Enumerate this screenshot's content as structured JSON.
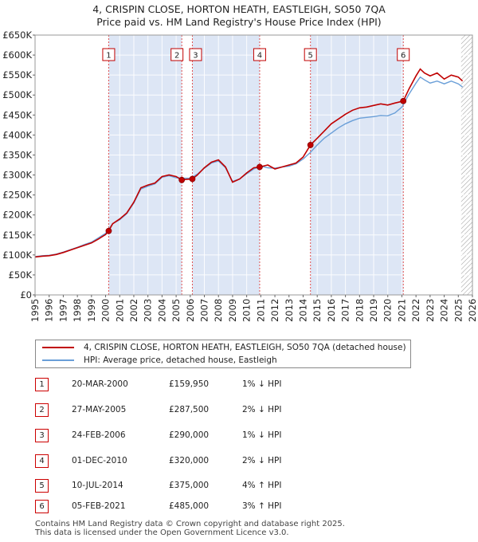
{
  "title_line1": "4, CRISPIN CLOSE, HORTON HEATH, EASTLEIGH, SO50 7QA",
  "title_line2": "Price paid vs. HM Land Registry's House Price Index (HPI)",
  "legend": {
    "property": "4, CRISPIN CLOSE, HORTON HEATH, EASTLEIGH, SO50 7QA (detached house)",
    "hpi": "HPI: Average price, detached house, Eastleigh"
  },
  "colors": {
    "property": "#c00000",
    "hpi": "#6a9fd8",
    "band": "#dde6f5",
    "marker_line": "#e05050"
  },
  "sales": [
    {
      "num": "1",
      "date": "20-MAR-2000",
      "price": "£159,950",
      "hpi": "1% ↓ HPI"
    },
    {
      "num": "2",
      "date": "27-MAY-2005",
      "price": "£287,500",
      "hpi": "2% ↓ HPI"
    },
    {
      "num": "3",
      "date": "24-FEB-2006",
      "price": "£290,000",
      "hpi": "1% ↓ HPI"
    },
    {
      "num": "4",
      "date": "01-DEC-2010",
      "price": "£320,000",
      "hpi": "2% ↓ HPI"
    },
    {
      "num": "5",
      "date": "10-JUL-2014",
      "price": "£375,000",
      "hpi": "4% ↑ HPI"
    },
    {
      "num": "6",
      "date": "05-FEB-2021",
      "price": "£485,000",
      "hpi": "3% ↑ HPI"
    }
  ],
  "footer_line1": "Contains HM Land Registry data © Crown copyright and database right 2025.",
  "footer_line2": "This data is licensed under the Open Government Licence v3.0.",
  "chart_data": {
    "type": "line",
    "xlim": [
      1995,
      2026
    ],
    "ylim": [
      0,
      650000
    ],
    "yticks": [
      0,
      50000,
      100000,
      150000,
      200000,
      250000,
      300000,
      350000,
      400000,
      450000,
      500000,
      550000,
      600000,
      650000
    ],
    "ytick_labels": [
      "£0",
      "£50K",
      "£100K",
      "£150K",
      "£200K",
      "£250K",
      "£300K",
      "£350K",
      "£400K",
      "£450K",
      "£500K",
      "£550K",
      "£600K",
      "£650K"
    ],
    "xticks": [
      1995,
      1996,
      1997,
      1998,
      1999,
      2000,
      2001,
      2002,
      2003,
      2004,
      2005,
      2006,
      2007,
      2008,
      2009,
      2010,
      2011,
      2012,
      2013,
      2014,
      2015,
      2016,
      2017,
      2018,
      2019,
      2020,
      2021,
      2022,
      2023,
      2024,
      2025,
      2026
    ],
    "shaded_ranges": [
      [
        2000.22,
        2005.4
      ],
      [
        2006.15,
        2010.92
      ],
      [
        2014.52,
        2021.1
      ]
    ],
    "hatched_from": 2025.2,
    "sale_points": [
      {
        "label": "1",
        "x": 2000.22,
        "y": 159950
      },
      {
        "label": "2",
        "x": 2005.4,
        "y": 287500
      },
      {
        "label": "3",
        "x": 2006.15,
        "y": 290000
      },
      {
        "label": "4",
        "x": 2010.92,
        "y": 320000
      },
      {
        "label": "5",
        "x": 2014.52,
        "y": 375000
      },
      {
        "label": "6",
        "x": 2021.1,
        "y": 485000
      }
    ],
    "series": [
      {
        "name": "4, CRISPIN CLOSE, HORTON HEATH, EASTLEIGH, SO50 7QA (detached house)",
        "x": [
          1995,
          1995.5,
          1996,
          1996.5,
          1997,
          1997.5,
          1998,
          1998.5,
          1999,
          1999.5,
          2000,
          2000.22,
          2000.5,
          2001,
          2001.5,
          2002,
          2002.5,
          2003,
          2003.5,
          2004,
          2004.5,
          2005,
          2005.4,
          2005.7,
          2006.15,
          2006.5,
          2007,
          2007.5,
          2008,
          2008.5,
          2009,
          2009.5,
          2010,
          2010.5,
          2010.92,
          2011.5,
          2012,
          2012.5,
          2013,
          2013.5,
          2014,
          2014.52,
          2015,
          2015.5,
          2016,
          2016.5,
          2017,
          2017.5,
          2018,
          2018.5,
          2019,
          2019.5,
          2020,
          2020.5,
          2021.1,
          2021.5,
          2022,
          2022.3,
          2022.6,
          2023,
          2023.5,
          2024,
          2024.5,
          2025,
          2025.3
        ],
        "y": [
          95000,
          97000,
          98000,
          101000,
          106000,
          112000,
          118000,
          124000,
          130000,
          140000,
          151000,
          159950,
          178000,
          190000,
          205000,
          232000,
          268000,
          275000,
          280000,
          296000,
          300000,
          296000,
          287500,
          289000,
          290000,
          300000,
          318000,
          332000,
          338000,
          320000,
          282000,
          290000,
          305000,
          318000,
          320000,
          325000,
          315000,
          320000,
          325000,
          330000,
          345000,
          375000,
          392000,
          410000,
          428000,
          440000,
          452000,
          462000,
          468000,
          470000,
          474000,
          478000,
          475000,
          480000,
          485000,
          515000,
          548000,
          565000,
          555000,
          548000,
          555000,
          540000,
          550000,
          545000,
          535000
        ]
      },
      {
        "name": "HPI: Average price, detached house, Eastleigh",
        "x": [
          1995,
          1995.5,
          1996,
          1996.5,
          1997,
          1997.5,
          1998,
          1998.5,
          1999,
          1999.5,
          2000,
          2000.5,
          2001,
          2001.5,
          2002,
          2002.5,
          2003,
          2003.5,
          2004,
          2004.5,
          2005,
          2005.5,
          2006,
          2006.5,
          2007,
          2007.5,
          2008,
          2008.5,
          2009,
          2009.5,
          2010,
          2010.5,
          2011,
          2011.5,
          2012,
          2012.5,
          2013,
          2013.5,
          2014,
          2014.5,
          2015,
          2015.5,
          2016,
          2016.5,
          2017,
          2017.5,
          2018,
          2018.5,
          2019,
          2019.5,
          2020,
          2020.5,
          2021,
          2021.5,
          2022,
          2022.3,
          2022.6,
          2023,
          2023.5,
          2024,
          2024.5,
          2025,
          2025.3
        ],
        "y": [
          96000,
          98000,
          99000,
          102000,
          107000,
          113000,
          119000,
          126000,
          132000,
          143000,
          154000,
          178000,
          188000,
          203000,
          230000,
          265000,
          272000,
          278000,
          294000,
          298000,
          293000,
          292000,
          292000,
          302000,
          317000,
          330000,
          335000,
          318000,
          284000,
          290000,
          303000,
          315000,
          322000,
          318000,
          317000,
          320000,
          322000,
          328000,
          340000,
          356000,
          375000,
          392000,
          405000,
          418000,
          428000,
          436000,
          442000,
          444000,
          446000,
          449000,
          448000,
          455000,
          470000,
          502000,
          530000,
          545000,
          538000,
          530000,
          535000,
          528000,
          535000,
          528000,
          520000
        ]
      }
    ]
  }
}
